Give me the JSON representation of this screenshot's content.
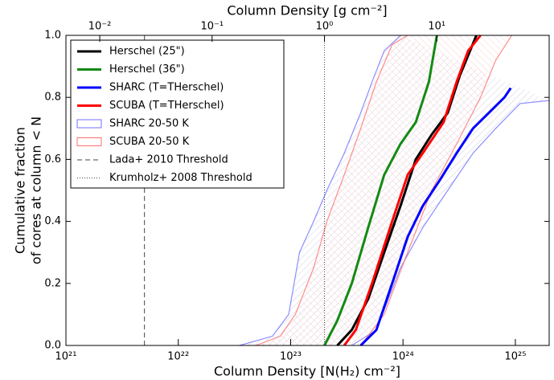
{
  "chart_data": {
    "type": "cdf",
    "xlabel": "Column Density [N(H₂) cm⁻²]",
    "x2label": "Column Density [g cm⁻²]",
    "ylabel": [
      "Cumulative fraction",
      "of cores at column < N"
    ],
    "xscale": "log",
    "xlim": [
      1e+21,
      2e+25
    ],
    "xticks": [
      {
        "value": 1e+21,
        "label": "10²¹"
      },
      {
        "value": 1e+22,
        "label": "10²²"
      },
      {
        "value": 1e+23,
        "label": "10²³"
      },
      {
        "value": 1e+24,
        "label": "10²⁴"
      },
      {
        "value": 1e+25,
        "label": "10²⁵"
      }
    ],
    "x2lim": [
      0.005,
      100
    ],
    "x2ticks": [
      {
        "value": 0.01,
        "label": "10⁻²"
      },
      {
        "value": 0.1,
        "label": "10⁻¹"
      },
      {
        "value": 1,
        "label": "10⁰"
      },
      {
        "value": 10,
        "label": "10¹"
      }
    ],
    "ylim": [
      0,
      1
    ],
    "yticks": [
      {
        "value": 0,
        "label": "0.0"
      },
      {
        "value": 0.2,
        "label": "0.2"
      },
      {
        "value": 0.4,
        "label": "0.4"
      },
      {
        "value": 0.6,
        "label": "0.6"
      },
      {
        "value": 0.8,
        "label": "0.8"
      },
      {
        "value": 1,
        "label": "1.0"
      }
    ],
    "legend": "upper left",
    "series": [
      {
        "name": "Herschel (25\")",
        "color": "#000000",
        "x": [
          2.6e+23,
          3.5e+23,
          4.9e+23,
          6.8e+23,
          9.5e+23,
          1.3e+24,
          1.8e+24,
          2.5e+24,
          3.2e+24,
          4.5e+24
        ],
        "values": [
          0,
          0.05,
          0.15,
          0.3,
          0.45,
          0.6,
          0.68,
          0.75,
          0.87,
          1.0
        ]
      },
      {
        "name": "Herschel (36\")",
        "color": "#138a13",
        "x": [
          2e+23,
          2.6e+23,
          3.5e+23,
          4.9e+23,
          6.8e+23,
          9.5e+23,
          1.3e+24,
          1.7e+24,
          2e+24
        ],
        "values": [
          0,
          0.08,
          0.2,
          0.38,
          0.55,
          0.65,
          0.72,
          0.85,
          1.0
        ]
      },
      {
        "name": "SHARC (T=THerschel)",
        "color": "#0000ff",
        "x": [
          4.2e+23,
          5.8e+23,
          8e+23,
          1.1e+24,
          1.5e+24,
          2.1e+24,
          3e+24,
          4.2e+24,
          5.8e+24,
          8e+24,
          9.1e+24
        ],
        "values": [
          0,
          0.05,
          0.2,
          0.35,
          0.45,
          0.53,
          0.62,
          0.7,
          0.75,
          0.8,
          0.83
        ]
      },
      {
        "name": "SCUBA (T=THerschel)",
        "color": "#ff0000",
        "x": [
          3e+23,
          3.8e+23,
          5.3e+23,
          8e+23,
          1.1e+24,
          1.5e+24,
          2.3e+24,
          3e+24,
          3.8e+24,
          4.9e+24
        ],
        "values": [
          0,
          0.05,
          0.2,
          0.4,
          0.55,
          0.62,
          0.72,
          0.85,
          0.95,
          1.0
        ]
      }
    ],
    "bands": [
      {
        "name": "SHARC 20-50 K",
        "color": "#7070ff",
        "left": {
          "x": [
            3.5e+22,
            6.9e+22,
            9.6e+22,
            1.2e+23,
            1.6e+23,
            2.1e+23,
            3e+23,
            4.2e+23,
            5.3e+23,
            6.8e+23,
            9.5e+23
          ],
          "values": [
            0,
            0.03,
            0.1,
            0.3,
            0.4,
            0.5,
            0.62,
            0.75,
            0.85,
            0.95,
            1.0
          ]
        },
        "right": {
          "x": [
            3.5e+23,
            5.8e+23,
            9.5e+23,
            1.5e+24,
            2.5e+24,
            4.2e+24,
            6.7e+24,
            1.1e+25,
            2e+25
          ],
          "values": [
            0,
            0.05,
            0.25,
            0.38,
            0.5,
            0.62,
            0.7,
            0.78,
            0.79
          ]
        }
      },
      {
        "name": "SCUBA 20-50 K",
        "color": "#ff7070",
        "left": {
          "x": [
            4.9e+22,
            8.1e+22,
            1.1e+23,
            1.6e+23,
            2.1e+23,
            3e+23,
            4.2e+23,
            5.8e+23,
            8e+23,
            1.1e+24
          ],
          "values": [
            0,
            0.03,
            0.1,
            0.25,
            0.4,
            0.55,
            0.7,
            0.85,
            0.97,
            1.0
          ]
        },
        "right": {
          "x": [
            4.2e+23,
            6.8e+23,
            1.1e+24,
            1.8e+24,
            3e+24,
            4.9e+24,
            6.7e+24,
            9.3e+24
          ],
          "values": [
            0,
            0.1,
            0.3,
            0.5,
            0.65,
            0.8,
            0.92,
            1.0
          ]
        }
      }
    ],
    "vlines": [
      {
        "name": "Lada+ 2010 Threshold",
        "x": 5e+21,
        "style": "dashed",
        "color": "#444444"
      },
      {
        "name": "Krumholz+ 2008 Threshold",
        "x": 2e+23,
        "style": "dotted",
        "color": "#444444"
      }
    ]
  }
}
